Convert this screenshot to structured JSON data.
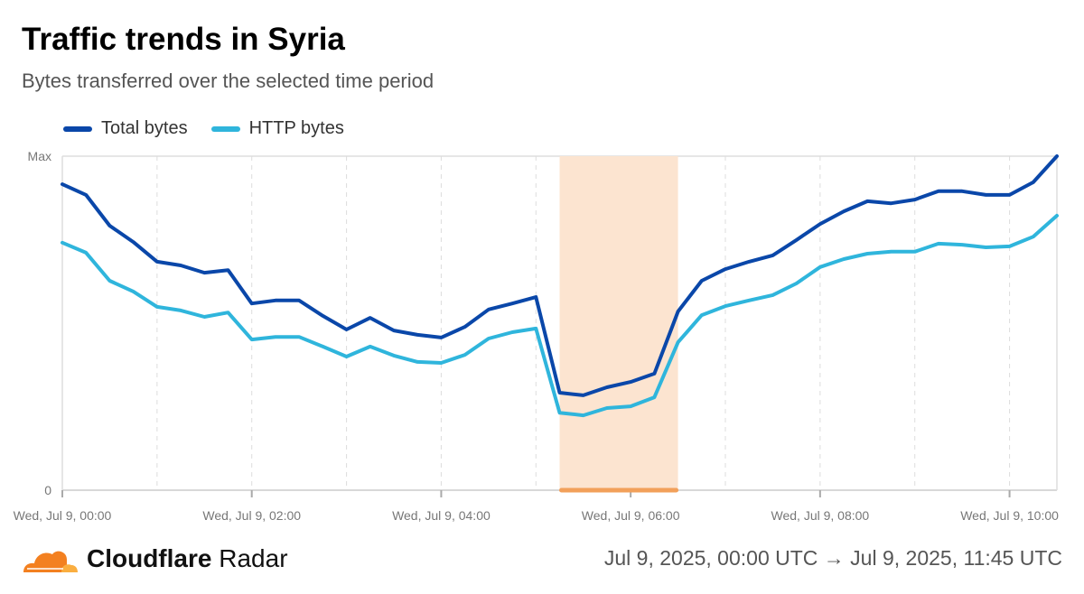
{
  "header": {
    "title": "Traffic trends in Syria",
    "subtitle": "Bytes transferred over the selected time period"
  },
  "footer": {
    "brand_bold": "Cloudflare",
    "brand_light": "Radar",
    "range": "Jul 9, 2025, 00:00 UTC → Jul 9, 2025, 11:45 UTC"
  },
  "colors": {
    "total": "#0a47a9",
    "http": "#2fb5dc",
    "highlight": "#fce4d0",
    "highlight_bar": "#f2a05a"
  },
  "chart_data": {
    "type": "line",
    "title": "Traffic trends in Syria",
    "xlabel": "",
    "ylabel": "",
    "ylim": [
      0,
      100
    ],
    "y_ticks": [
      {
        "value": 0,
        "label": "0"
      },
      {
        "value": 100,
        "label": "Max"
      }
    ],
    "x_start_hour": 0,
    "x_step_hours": 0.25,
    "x_range_hours": [
      0,
      10.5
    ],
    "x_ticks": [
      {
        "hour": 0,
        "label": "Wed, Jul 9, 00:00"
      },
      {
        "hour": 2,
        "label": "Wed, Jul 9, 02:00"
      },
      {
        "hour": 4,
        "label": "Wed, Jul 9, 04:00"
      },
      {
        "hour": 6,
        "label": "Wed, Jul 9, 06:00"
      },
      {
        "hour": 8,
        "label": "Wed, Jul 9, 08:00"
      },
      {
        "hour": 10,
        "label": "Wed, Jul 9, 10:00"
      }
    ],
    "highlight": {
      "from_hour": 5.25,
      "to_hour": 6.5
    },
    "legend_position": "top-left",
    "series": [
      {
        "name": "Total bytes",
        "values": [
          91.6,
          88.4,
          79.2,
          74.3,
          68.4,
          67.3,
          65.1,
          65.9,
          55.9,
          56.8,
          56.8,
          52.2,
          48.1,
          51.6,
          47.8,
          46.5,
          45.7,
          48.9,
          54.1,
          55.9,
          57.8,
          29.2,
          28.4,
          30.8,
          32.4,
          34.9,
          53.5,
          62.7,
          66.2,
          68.4,
          70.3,
          74.9,
          79.7,
          83.5,
          86.5,
          85.9,
          87.0,
          89.5,
          89.5,
          88.4,
          88.4,
          92.2,
          100
        ]
      },
      {
        "name": "HTTP bytes",
        "values": [
          74.1,
          71.1,
          62.7,
          59.5,
          54.9,
          53.8,
          51.9,
          53.2,
          45.1,
          45.9,
          45.9,
          43.0,
          40.0,
          43.0,
          40.3,
          38.4,
          38.1,
          40.5,
          45.4,
          47.3,
          48.4,
          23.2,
          22.4,
          24.6,
          25.1,
          27.8,
          44.3,
          52.4,
          55.1,
          56.8,
          58.4,
          61.9,
          66.8,
          69.2,
          70.8,
          71.4,
          71.4,
          73.8,
          73.5,
          72.7,
          73.0,
          75.9,
          82.2
        ]
      }
    ]
  }
}
